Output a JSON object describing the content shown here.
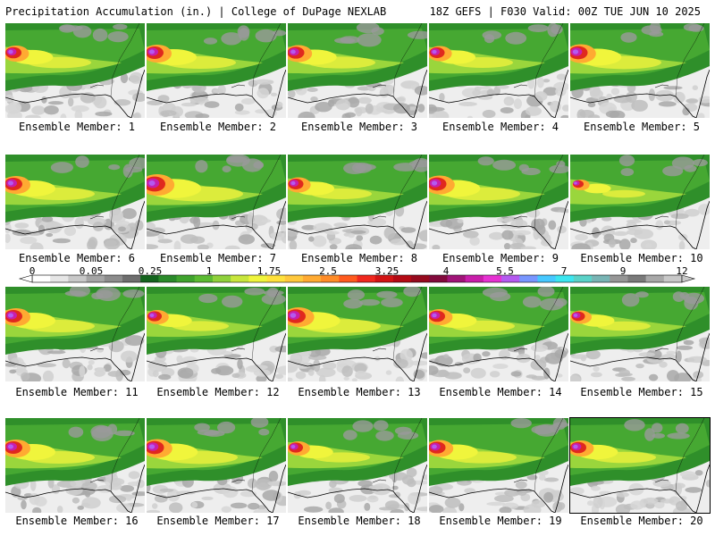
{
  "header": {
    "title": "Precipitation Accumulation (in.) | College of DuPage NEXLAB",
    "run_info": "18Z GEFS | F030 Valid: 00Z TUE JUN 10 2025"
  },
  "colorbar": {
    "labels": [
      "0",
      "0.05",
      "0.25",
      "1",
      "1.75",
      "2.5",
      "3.25",
      "4",
      "5.5",
      "7",
      "9",
      "12"
    ],
    "colors": [
      "#ffffff",
      "#e6e6e6",
      "#c8c8c8",
      "#a5a5a5",
      "#8c8c8c",
      "#6e6e6e",
      "#14641e",
      "#2a8a2a",
      "#3fa32d",
      "#5bbb32",
      "#8fd13b",
      "#c8e63c",
      "#f0f53c",
      "#ffe13c",
      "#ffc83c",
      "#ffaa32",
      "#ff8c28",
      "#ff5a1e",
      "#f0281e",
      "#d21414",
      "#b40a14",
      "#960a1e",
      "#820a3c",
      "#a01478",
      "#c81eaa",
      "#e632d2",
      "#b45af0",
      "#7896ff",
      "#46c8ff",
      "#3ce6f0",
      "#5ad2c8",
      "#78b4b4",
      "#969696",
      "#7a7a7a",
      "#a8a8a8",
      "#c8c8c8"
    ]
  },
  "members": [
    {
      "label": "Ensemble Member: 1",
      "intensity": 0.9
    },
    {
      "label": "Ensemble Member: 2",
      "intensity": 1.0
    },
    {
      "label": "Ensemble Member: 3",
      "intensity": 0.95
    },
    {
      "label": "Ensemble Member: 4",
      "intensity": 0.85
    },
    {
      "label": "Ensemble Member: 5",
      "intensity": 1.05
    },
    {
      "label": "Ensemble Member: 6",
      "intensity": 1.0
    },
    {
      "label": "Ensemble Member: 7",
      "intensity": 1.2
    },
    {
      "label": "Ensemble Member: 8",
      "intensity": 0.85
    },
    {
      "label": "Ensemble Member: 9",
      "intensity": 1.05
    },
    {
      "label": "Ensemble Member: 10",
      "intensity": 0.6
    },
    {
      "label": "Ensemble Member: 11",
      "intensity": 1.0
    },
    {
      "label": "Ensemble Member: 12",
      "intensity": 0.8
    },
    {
      "label": "Ensemble Member: 13",
      "intensity": 1.1
    },
    {
      "label": "Ensemble Member: 14",
      "intensity": 0.9
    },
    {
      "label": "Ensemble Member: 15",
      "intensity": 0.75
    },
    {
      "label": "Ensemble Member: 16",
      "intensity": 1.0
    },
    {
      "label": "Ensemble Member: 17",
      "intensity": 1.05
    },
    {
      "label": "Ensemble Member: 18",
      "intensity": 0.8
    },
    {
      "label": "Ensemble Member: 19",
      "intensity": 0.95
    },
    {
      "label": "Ensemble Member: 20",
      "intensity": 0.9
    }
  ]
}
